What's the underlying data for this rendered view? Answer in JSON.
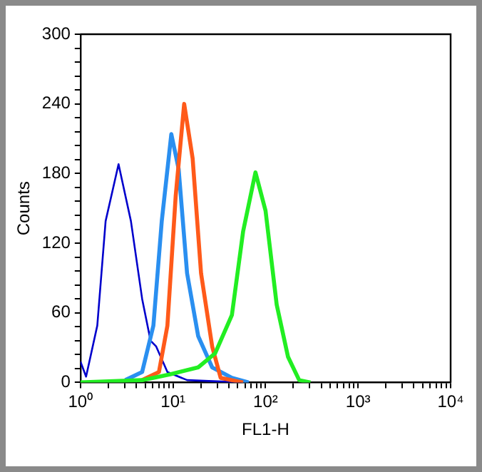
{
  "chart_data": {
    "type": "line",
    "xlabel": "FL1-H",
    "ylabel": "Counts",
    "log": "x",
    "grid": false,
    "legend": false,
    "marker": "none",
    "line_style": "solid",
    "xlim": [
      1,
      10000
    ],
    "xticks": [
      {
        "value": 1,
        "label": "10⁰"
      },
      {
        "value": 2,
        "label": null
      },
      {
        "value": 3,
        "label": null
      },
      {
        "value": 4,
        "label": null
      },
      {
        "value": 5,
        "label": null
      },
      {
        "value": 6,
        "label": null
      },
      {
        "value": 7,
        "label": null
      },
      {
        "value": 8,
        "label": null
      },
      {
        "value": 9,
        "label": null
      },
      {
        "value": 10,
        "label": "10¹"
      },
      {
        "value": 20,
        "label": null
      },
      {
        "value": 30,
        "label": null
      },
      {
        "value": 40,
        "label": null
      },
      {
        "value": 50,
        "label": null
      },
      {
        "value": 60,
        "label": null
      },
      {
        "value": 70,
        "label": null
      },
      {
        "value": 80,
        "label": null
      },
      {
        "value": 90,
        "label": null
      },
      {
        "value": 100,
        "label": "10²"
      },
      {
        "value": 200,
        "label": null
      },
      {
        "value": 300,
        "label": null
      },
      {
        "value": 400,
        "label": null
      },
      {
        "value": 500,
        "label": null
      },
      {
        "value": 600,
        "label": null
      },
      {
        "value": 700,
        "label": null
      },
      {
        "value": 800,
        "label": null
      },
      {
        "value": 900,
        "label": null
      },
      {
        "value": 1000,
        "label": "10³"
      },
      {
        "value": 2000,
        "label": null
      },
      {
        "value": 3000,
        "label": null
      },
      {
        "value": 4000,
        "label": null
      },
      {
        "value": 5000,
        "label": null
      },
      {
        "value": 6000,
        "label": null
      },
      {
        "value": 7000,
        "label": null
      },
      {
        "value": 8000,
        "label": null
      },
      {
        "value": 9000,
        "label": null
      },
      {
        "value": 10000,
        "label": "10⁴"
      }
    ],
    "ylim": [
      0,
      300
    ],
    "yticks": [
      0,
      {
        "value": 12,
        "label": null
      },
      {
        "value": 24,
        "label": null
      },
      {
        "value": 36,
        "label": null
      },
      {
        "value": 48,
        "label": null
      },
      60,
      {
        "value": 72,
        "label": null
      },
      {
        "value": 84,
        "label": null
      },
      {
        "value": 96,
        "label": null
      },
      {
        "value": 108,
        "label": null
      },
      120,
      {
        "value": 132,
        "label": null
      },
      {
        "value": 144,
        "label": null
      },
      {
        "value": 156,
        "label": null
      },
      {
        "value": 168,
        "label": null
      },
      180,
      {
        "value": 192,
        "label": null
      },
      {
        "value": 204,
        "label": null
      },
      {
        "value": 216,
        "label": null
      },
      {
        "value": 228,
        "label": null
      },
      240,
      {
        "value": 252,
        "label": null
      },
      {
        "value": 264,
        "label": null
      },
      {
        "value": 276,
        "label": null
      },
      {
        "value": 288,
        "label": null
      },
      300
    ],
    "series": [
      {
        "color": "#0000cc",
        "x": [
          1,
          1.15,
          1.52,
          1.87,
          2.58,
          3.51,
          4.64,
          5.72,
          6.58,
          8.7,
          14.2,
          57.2
        ],
        "values": [
          18,
          5,
          49,
          139,
          188,
          139,
          72,
          36,
          31,
          9,
          2,
          0
        ]
      },
      {
        "color": "#2a8ff0",
        "x": [
          3.05,
          4.64,
          6.14,
          7.56,
          9.59,
          11.5,
          14.2,
          18.7,
          26.5,
          43.3,
          65.8
        ],
        "values": [
          2,
          9,
          49,
          139,
          214,
          184,
          94,
          40,
          13,
          4,
          0
        ]
      },
      {
        "color": "#ff5a1a",
        "x": [
          4.64,
          7.05,
          8.7,
          10.7,
          13.2,
          16.3,
          20.1,
          26.5,
          32.7,
          57.2
        ],
        "values": [
          2,
          9,
          49,
          161,
          240,
          193,
          94,
          31,
          4,
          0
        ]
      },
      {
        "color": "#22ee22",
        "x": [
          1,
          4.64,
          9.33,
          18.7,
          28.5,
          43.3,
          57.2,
          77.8,
          100,
          132,
          175,
          231,
          306
        ],
        "values": [
          0,
          2,
          7,
          13,
          25,
          58,
          130,
          181,
          148,
          67,
          22,
          2,
          0
        ]
      }
    ]
  }
}
